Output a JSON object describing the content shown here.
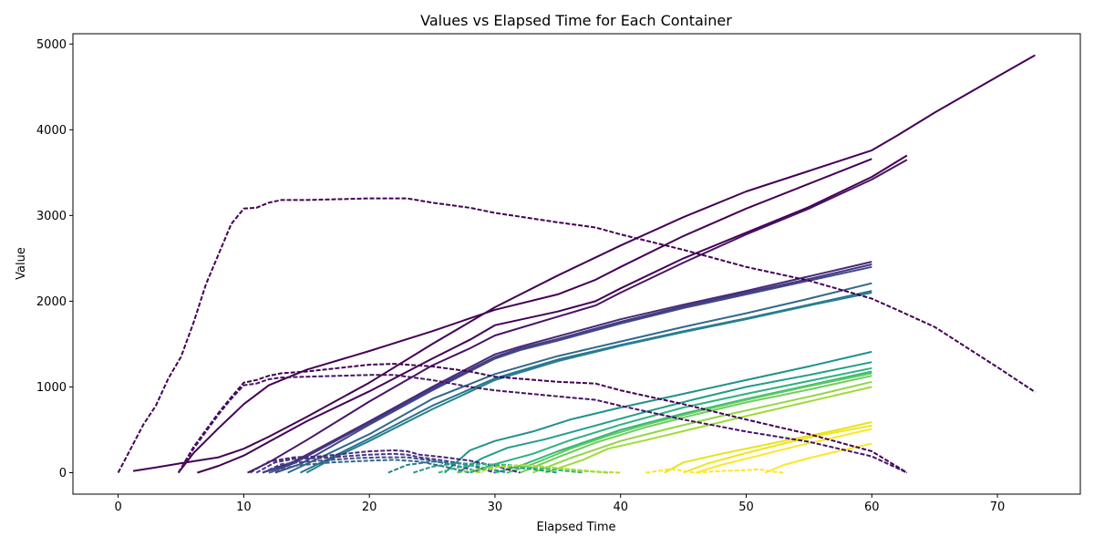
{
  "chart_data": {
    "type": "line",
    "title": "Values vs Elapsed Time for Each Container",
    "xlabel": "Elapsed Time",
    "ylabel": "Value",
    "xlim": [
      -3.6,
      76.6
    ],
    "ylim": [
      -250,
      5120
    ],
    "xticks": [
      0,
      10,
      20,
      30,
      40,
      50,
      60,
      70
    ],
    "yticks": [
      0,
      1000,
      2000,
      3000,
      4000,
      5000
    ],
    "grid": false,
    "legend": "none",
    "colormap": [
      "#440154",
      "#482878",
      "#3e4989",
      "#31688e",
      "#26828e",
      "#1f9e89",
      "#35b779",
      "#6ece58",
      "#b5de2b",
      "#fde725"
    ],
    "series": [
      {
        "color": "#440154",
        "style": "solid",
        "x": [
          1.2,
          3,
          5,
          8,
          10,
          12,
          15,
          20,
          25,
          30,
          35,
          40,
          45,
          50,
          55,
          60,
          62,
          65,
          70,
          73
        ],
        "y": [
          20,
          60,
          110,
          180,
          280,
          420,
          650,
          1050,
          1500,
          1930,
          2300,
          2650,
          2980,
          3280,
          3520,
          3760,
          3930,
          4200,
          4620,
          4870
        ]
      },
      {
        "color": "#440154",
        "style": "solid",
        "x": [
          4.8,
          6,
          8,
          10,
          12,
          15,
          20,
          25,
          30,
          35,
          38,
          40,
          45,
          50,
          55,
          60
        ],
        "y": [
          0,
          230,
          520,
          800,
          1020,
          1200,
          1420,
          1650,
          1900,
          2080,
          2250,
          2400,
          2760,
          3080,
          3370,
          3660
        ]
      },
      {
        "color": "#440154",
        "style": "solid",
        "x": [
          6.3,
          8,
          10,
          12,
          15,
          20,
          25,
          28,
          30,
          35,
          38,
          40,
          45,
          50,
          55,
          60,
          62.8
        ],
        "y": [
          0,
          80,
          200,
          360,
          600,
          950,
          1330,
          1550,
          1720,
          1880,
          2000,
          2150,
          2500,
          2800,
          3100,
          3450,
          3700
        ]
      },
      {
        "color": "#471366",
        "style": "solid",
        "x": [
          10.3,
          12,
          15,
          20,
          25,
          28,
          30,
          35,
          38,
          40,
          45,
          50,
          55,
          60,
          62.8
        ],
        "y": [
          0,
          120,
          380,
          830,
          1250,
          1450,
          1600,
          1820,
          1950,
          2100,
          2450,
          2780,
          3080,
          3420,
          3650
        ]
      },
      {
        "color": "#482878",
        "style": "solid",
        "x": [
          11.5,
          14,
          20,
          25,
          30,
          32,
          35,
          40,
          45,
          50,
          55,
          60
        ],
        "y": [
          0,
          130,
          600,
          1000,
          1380,
          1470,
          1590,
          1790,
          1960,
          2120,
          2290,
          2460
        ]
      },
      {
        "color": "#453781",
        "style": "solid",
        "x": [
          12,
          14,
          20,
          25,
          30,
          32,
          35,
          40,
          45,
          50,
          55,
          60
        ],
        "y": [
          0,
          110,
          580,
          980,
          1350,
          1450,
          1560,
          1760,
          1940,
          2100,
          2260,
          2430
        ]
      },
      {
        "color": "#3e4989",
        "style": "solid",
        "x": [
          12.5,
          14.5,
          20,
          25,
          30,
          32,
          35,
          40,
          45,
          50,
          55,
          60
        ],
        "y": [
          0,
          100,
          560,
          960,
          1330,
          1430,
          1540,
          1740,
          1920,
          2080,
          2240,
          2400
        ]
      },
      {
        "color": "#31688e",
        "style": "solid",
        "x": [
          13.5,
          16,
          20,
          25,
          30,
          35,
          40,
          45,
          50,
          55,
          60
        ],
        "y": [
          0,
          170,
          450,
          860,
          1150,
          1360,
          1530,
          1700,
          1860,
          2030,
          2210
        ]
      },
      {
        "color": "#2c728e",
        "style": "solid",
        "x": [
          14.5,
          17,
          20,
          25,
          30,
          35,
          40,
          45,
          50,
          55,
          60
        ],
        "y": [
          0,
          180,
          400,
          780,
          1100,
          1320,
          1490,
          1650,
          1800,
          1960,
          2120
        ]
      },
      {
        "color": "#26828e",
        "style": "solid",
        "x": [
          15,
          17,
          20,
          25,
          30,
          35,
          40,
          45,
          50,
          55,
          60
        ],
        "y": [
          0,
          160,
          370,
          740,
          1080,
          1300,
          1480,
          1640,
          1790,
          1950,
          2100
        ]
      },
      {
        "color": "#21918c",
        "style": "solid",
        "x": [
          26,
          28,
          30,
          33,
          36,
          40,
          45,
          50,
          55,
          60
        ],
        "y": [
          0,
          260,
          370,
          480,
          620,
          760,
          920,
          1080,
          1240,
          1410
        ]
      },
      {
        "color": "#1f9e89",
        "style": "solid",
        "x": [
          27,
          29,
          31,
          34,
          38,
          42,
          46,
          50,
          55,
          60
        ],
        "y": [
          0,
          170,
          290,
          390,
          550,
          710,
          860,
          1000,
          1140,
          1290
        ]
      },
      {
        "color": "#2db27d",
        "style": "solid",
        "x": [
          28,
          30,
          33,
          36,
          40,
          45,
          50,
          55,
          60
        ],
        "y": [
          0,
          100,
          220,
          380,
          560,
          760,
          920,
          1070,
          1220
        ]
      },
      {
        "color": "#35b779",
        "style": "solid",
        "x": [
          30,
          32,
          35,
          38,
          40,
          45,
          50,
          55,
          60
        ],
        "y": [
          0,
          80,
          250,
          400,
          500,
          690,
          860,
          1020,
          1180
        ]
      },
      {
        "color": "#5ec962",
        "style": "solid",
        "x": [
          31,
          33,
          36,
          39,
          42,
          46,
          50,
          55,
          60
        ],
        "y": [
          0,
          100,
          280,
          430,
          560,
          710,
          850,
          1010,
          1160
        ]
      },
      {
        "color": "#6ece58",
        "style": "solid",
        "x": [
          32,
          35,
          38,
          42,
          46,
          50,
          55,
          60
        ],
        "y": [
          0,
          180,
          350,
          530,
          680,
          820,
          970,
          1130
        ]
      },
      {
        "color": "#90d743",
        "style": "solid",
        "x": [
          33,
          36,
          40,
          44,
          48,
          52,
          56,
          60
        ],
        "y": [
          0,
          170,
          370,
          520,
          660,
          790,
          920,
          1060
        ]
      },
      {
        "color": "#a0da39",
        "style": "solid",
        "x": [
          34,
          37,
          39,
          42,
          46,
          50,
          55,
          60
        ],
        "y": [
          0,
          150,
          280,
          380,
          520,
          660,
          830,
          1000
        ]
      },
      {
        "color": "#e5e419",
        "style": "solid",
        "x": [
          43.5,
          45,
          48,
          51,
          54,
          57,
          60
        ],
        "y": [
          0,
          120,
          220,
          310,
          400,
          490,
          590
        ]
      },
      {
        "color": "#f0e51e",
        "style": "solid",
        "x": [
          45,
          47,
          50,
          53,
          56,
          60
        ],
        "y": [
          0,
          110,
          230,
          340,
          440,
          550
        ]
      },
      {
        "color": "#fde725",
        "style": "solid",
        "x": [
          46,
          48,
          51,
          54,
          57,
          60
        ],
        "y": [
          0,
          90,
          200,
          310,
          410,
          510
        ]
      },
      {
        "color": "#fde725",
        "style": "solid",
        "x": [
          51.5,
          53,
          55,
          57,
          60
        ],
        "y": [
          0,
          90,
          170,
          240,
          340
        ]
      },
      {
        "color": "#440154",
        "style": "dashed",
        "x": [
          0,
          1,
          2,
          3,
          4,
          5,
          6,
          7,
          8,
          9,
          10,
          11,
          12,
          13,
          15,
          20,
          23,
          25,
          28,
          30,
          35,
          38,
          40,
          45,
          50,
          55,
          60,
          62,
          65,
          70,
          73
        ],
        "y": [
          0,
          280,
          560,
          780,
          1100,
          1350,
          1750,
          2200,
          2550,
          2900,
          3080,
          3090,
          3150,
          3180,
          3180,
          3200,
          3200,
          3150,
          3090,
          3030,
          2920,
          2860,
          2780,
          2600,
          2400,
          2240,
          2030,
          1900,
          1700,
          1230,
          940
        ]
      },
      {
        "color": "#440154",
        "style": "dashed",
        "x": [
          4.8,
          6,
          7,
          8,
          9,
          10,
          11,
          12,
          13,
          15,
          20,
          22,
          25,
          28,
          30,
          35,
          38,
          40,
          45,
          50,
          55,
          60,
          62.8
        ],
        "y": [
          0,
          300,
          500,
          700,
          880,
          1050,
          1080,
          1130,
          1160,
          1180,
          1260,
          1270,
          1240,
          1180,
          1120,
          1060,
          1040,
          960,
          800,
          620,
          450,
          250,
          0
        ]
      },
      {
        "color": "#471366",
        "style": "dashed",
        "x": [
          4.8,
          6,
          7,
          8,
          9,
          10,
          11,
          12,
          13,
          15,
          20,
          22,
          25,
          28,
          30,
          35,
          38,
          40,
          45,
          50,
          55,
          60,
          62.8
        ],
        "y": [
          0,
          280,
          480,
          680,
          860,
          1020,
          1040,
          1090,
          1110,
          1120,
          1140,
          1140,
          1080,
          1000,
          960,
          890,
          850,
          780,
          620,
          480,
          360,
          190,
          0
        ]
      },
      {
        "color": "#482878",
        "style": "dashed",
        "x": [
          10.5,
          12,
          14,
          16,
          18,
          20,
          22,
          23,
          24,
          26,
          28,
          30,
          32
        ],
        "y": [
          0,
          130,
          180,
          190,
          220,
          250,
          260,
          250,
          210,
          180,
          140,
          80,
          0
        ]
      },
      {
        "color": "#453781",
        "style": "dashed",
        "x": [
          11,
          12.5,
          14,
          16,
          18,
          20,
          22,
          23,
          24,
          26,
          28,
          30
        ],
        "y": [
          0,
          120,
          160,
          170,
          190,
          210,
          220,
          210,
          180,
          140,
          90,
          0
        ]
      },
      {
        "color": "#3e4989",
        "style": "dashed",
        "x": [
          11.5,
          13,
          15,
          17,
          19,
          21,
          23,
          25,
          27,
          29
        ],
        "y": [
          0,
          100,
          130,
          150,
          170,
          180,
          180,
          140,
          80,
          0
        ]
      },
      {
        "color": "#31688e",
        "style": "dashed",
        "x": [
          12,
          14,
          17,
          20,
          22,
          24,
          26,
          28
        ],
        "y": [
          0,
          80,
          120,
          140,
          150,
          130,
          70,
          0
        ]
      },
      {
        "color": "#26828e",
        "style": "dashed",
        "x": [
          21.5,
          23,
          25,
          27,
          29,
          31
        ],
        "y": [
          0,
          90,
          130,
          110,
          60,
          0
        ]
      },
      {
        "color": "#1f9e89",
        "style": "dashed",
        "x": [
          23.5,
          25,
          27,
          29,
          31,
          33,
          35
        ],
        "y": [
          0,
          70,
          110,
          100,
          70,
          40,
          0
        ]
      },
      {
        "color": "#35b779",
        "style": "dashed",
        "x": [
          25.5,
          27,
          29,
          31,
          33,
          35,
          37
        ],
        "y": [
          0,
          60,
          100,
          90,
          60,
          30,
          0
        ]
      },
      {
        "color": "#6ece58",
        "style": "dashed",
        "x": [
          27,
          29,
          31,
          33,
          35,
          37,
          39
        ],
        "y": [
          0,
          50,
          80,
          70,
          50,
          20,
          0
        ]
      },
      {
        "color": "#b5de2b",
        "style": "dashed",
        "x": [
          28.5,
          30,
          32,
          34,
          36,
          38,
          40
        ],
        "y": [
          0,
          60,
          90,
          70,
          40,
          15,
          0
        ]
      },
      {
        "color": "#fde725",
        "style": "dashed",
        "x": [
          42,
          43,
          44,
          45,
          46,
          48,
          50,
          51,
          52,
          53
        ],
        "y": [
          0,
          20,
          45,
          20,
          0,
          20,
          30,
          40,
          15,
          0
        ]
      }
    ]
  }
}
